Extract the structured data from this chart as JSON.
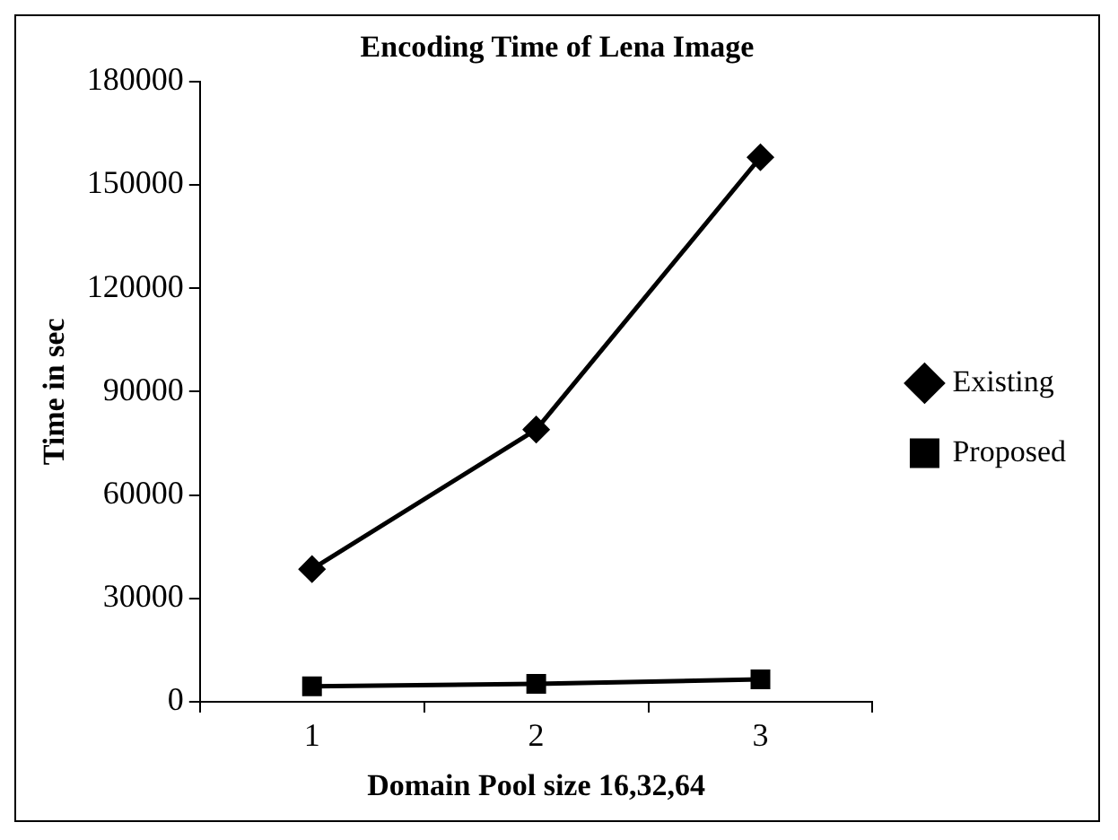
{
  "chart_data": {
    "type": "line",
    "title": "Encoding Time of Lena Image",
    "xlabel": "Domain Pool size 16,32,64",
    "ylabel": "Time in sec",
    "categories": [
      "1",
      "2",
      "3"
    ],
    "series": [
      {
        "name": "Existing",
        "color": "#000000",
        "marker": "diamond",
        "values": [
          38500,
          79000,
          158000
        ]
      },
      {
        "name": "Proposed",
        "color": "#000000",
        "marker": "square",
        "values": [
          4500,
          5200,
          6500
        ]
      }
    ],
    "ylim": [
      0,
      180000
    ],
    "yticks": [
      0,
      30000,
      60000,
      90000,
      120000,
      150000,
      180000
    ],
    "grid": false,
    "legend": "right",
    "line_style": "solid"
  }
}
